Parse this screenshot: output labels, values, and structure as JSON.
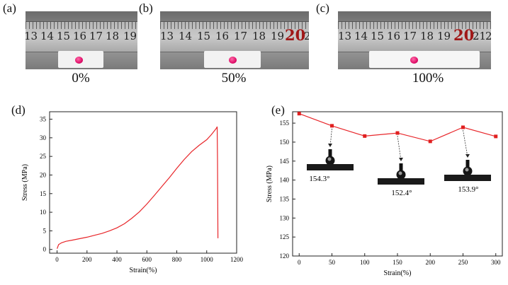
{
  "panels": {
    "a": {
      "label": "(a)",
      "caption": "0%",
      "ruler": [
        "13",
        "14",
        "15",
        "16",
        "17",
        "18",
        "19"
      ]
    },
    "b": {
      "label": "(b)",
      "caption": "50%",
      "ruler": [
        "13",
        "14",
        "15",
        "16",
        "17",
        "18",
        "19",
        "20",
        "2"
      ]
    },
    "c": {
      "label": "(c)",
      "caption": "100%",
      "ruler": [
        "13",
        "14",
        "15",
        "16",
        "17",
        "18",
        "19",
        "20",
        "21",
        "2"
      ]
    },
    "d": {
      "label": "(d)"
    },
    "e": {
      "label": "(e)",
      "angles": [
        "154.3°",
        "152.4°",
        "153.9°"
      ]
    }
  },
  "colors": {
    "line": "#e8262a",
    "marker": "#e02020"
  },
  "chart_data": [
    {
      "type": "line",
      "id": "d",
      "title": "",
      "xlabel": "Strain(%)",
      "ylabel": "Stress (MPa)",
      "xlim": [
        -50,
        1200
      ],
      "ylim": [
        -1,
        37
      ],
      "xticks": [
        "0",
        "200",
        "400",
        "600",
        "800",
        "1000",
        "1200"
      ],
      "yticks": [
        "0",
        "5",
        "10",
        "15",
        "20",
        "25",
        "30",
        "35"
      ],
      "series": [
        {
          "name": "stress-strain",
          "x": [
            0,
            10,
            30,
            60,
            100,
            150,
            200,
            250,
            300,
            350,
            400,
            450,
            500,
            550,
            600,
            650,
            700,
            750,
            800,
            850,
            900,
            950,
            1000,
            1030,
            1050,
            1065,
            1070,
            1072,
            1074,
            1075
          ],
          "y": [
            0.2,
            1.3,
            1.8,
            2.2,
            2.5,
            2.9,
            3.3,
            3.8,
            4.3,
            5.0,
            5.8,
            6.9,
            8.4,
            10.1,
            12.2,
            14.5,
            16.9,
            19.3,
            21.8,
            24.2,
            26.3,
            28.0,
            29.5,
            30.8,
            31.8,
            32.6,
            33.0,
            24.0,
            10.0,
            3.0
          ]
        }
      ]
    },
    {
      "type": "line",
      "id": "e",
      "title": "",
      "xlabel": "Strain(%)",
      "ylabel": "Stress (MPa)",
      "xlim": [
        -10,
        310
      ],
      "ylim": [
        120,
        158
      ],
      "xticks": [
        "0",
        "50",
        "100",
        "150",
        "200",
        "250",
        "300"
      ],
      "yticks": [
        "120",
        "125",
        "130",
        "135",
        "140",
        "145",
        "150",
        "155"
      ],
      "series": [
        {
          "name": "contact-angle",
          "x": [
            0,
            50,
            100,
            150,
            200,
            250,
            300
          ],
          "y": [
            157.5,
            154.3,
            151.6,
            152.4,
            150.2,
            153.9,
            151.5
          ]
        }
      ],
      "annotations": [
        {
          "x": 50,
          "y": 154.3,
          "text": "154.3°"
        },
        {
          "x": 150,
          "y": 152.4,
          "text": "152.4°"
        },
        {
          "x": 250,
          "y": 153.9,
          "text": "153.9°"
        }
      ]
    }
  ]
}
